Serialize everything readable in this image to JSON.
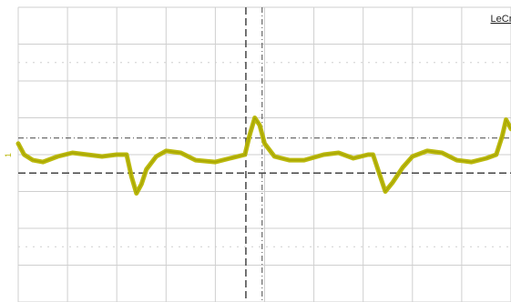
{
  "brand": "LeCroy",
  "channel_marker": "1",
  "colors": {
    "trace": "#b7b500",
    "grid": "#cfcfcf",
    "cursor": "#444444",
    "background": "#ffffff"
  },
  "chart_data": {
    "type": "line",
    "title": "",
    "xlabel": "",
    "ylabel": "",
    "grid": true,
    "xlim": [
      0,
      10
    ],
    "ylim": [
      -4,
      4
    ],
    "time_divisions": 10,
    "volt_divisions": 8,
    "cursors": {
      "horizontal_dashdot": 0.45,
      "horizontal_dashed": -0.5,
      "vertical_dashed": 4.62,
      "vertical_dashdot": 4.95
    },
    "series": [
      {
        "x": [
          0,
          0.12,
          0.3,
          0.5,
          0.8,
          1.1,
          1.4,
          1.7,
          2.0,
          2.2,
          2.3,
          2.4,
          2.5,
          2.6,
          2.8,
          3.0,
          3.3,
          3.6,
          4.0,
          4.3,
          4.6,
          4.7,
          4.8,
          4.9,
          5.0,
          5.2,
          5.5,
          5.8,
          6.2,
          6.5,
          6.8,
          7.1,
          7.2,
          7.35,
          7.45,
          7.6,
          7.8,
          8.0,
          8.3,
          8.6,
          8.9,
          9.2,
          9.5,
          9.7,
          9.82,
          9.9,
          10.0
        ],
        "values": [
          0.3,
          0.0,
          -0.15,
          -0.2,
          -0.05,
          0.05,
          0.0,
          -0.05,
          0.0,
          0.0,
          -0.6,
          -1.05,
          -0.8,
          -0.4,
          -0.05,
          0.1,
          0.05,
          -0.15,
          -0.2,
          -0.1,
          0.0,
          0.55,
          1.0,
          0.8,
          0.3,
          -0.05,
          -0.15,
          -0.15,
          0.0,
          0.05,
          -0.1,
          0.0,
          0.0,
          -0.6,
          -1.0,
          -0.75,
          -0.35,
          -0.05,
          0.1,
          0.05,
          -0.15,
          -0.2,
          -0.1,
          0.0,
          0.5,
          0.95,
          0.7
        ]
      }
    ]
  }
}
